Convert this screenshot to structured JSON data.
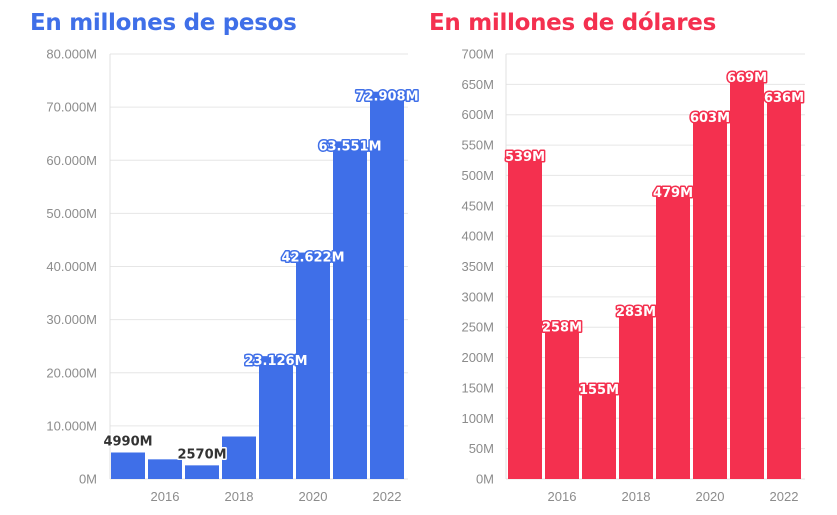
{
  "charts": [
    {
      "type": "bar",
      "title": "En millones de pesos",
      "color": "#3f6fe8",
      "years": [
        2015,
        2016,
        2017,
        2018,
        2019,
        2020,
        2021,
        2022
      ],
      "values": [
        4990,
        3700,
        2570,
        8000,
        23126,
        42622,
        63551,
        72908
      ],
      "data_labels": [
        "4990M",
        "",
        "2570M",
        "",
        "23.126M",
        "42.622M",
        "63.551M",
        "72.908M"
      ],
      "xticks": [
        2016,
        2018,
        2020,
        2022
      ],
      "yticks": [
        0,
        10000,
        20000,
        30000,
        40000,
        50000,
        60000,
        70000,
        80000
      ],
      "ytick_labels": [
        "0M",
        "10.000M",
        "20.000M",
        "30.000M",
        "40.000M",
        "50.000M",
        "60.000M",
        "70.000M",
        "80.000M"
      ],
      "ylim": [
        0,
        80000
      ],
      "grid": true
    },
    {
      "type": "bar",
      "title": "En millones de dólares",
      "color": "#f4304f",
      "years": [
        2015,
        2016,
        2017,
        2018,
        2019,
        2020,
        2021,
        2022
      ],
      "values": [
        539,
        258,
        155,
        283,
        479,
        603,
        669,
        636
      ],
      "data_labels": [
        "539M",
        "258M",
        "155M",
        "283M",
        "479M",
        "603M",
        "669M",
        "636M"
      ],
      "xticks": [
        2016,
        2018,
        2020,
        2022
      ],
      "yticks": [
        0,
        50,
        100,
        150,
        200,
        250,
        300,
        350,
        400,
        450,
        500,
        550,
        600,
        650,
        700
      ],
      "ytick_labels": [
        "0M",
        "50M",
        "100M",
        "150M",
        "200M",
        "250M",
        "300M",
        "350M",
        "400M",
        "450M",
        "500M",
        "550M",
        "600M",
        "650M",
        "700M"
      ],
      "ylim": [
        0,
        700
      ],
      "grid": true
    }
  ]
}
